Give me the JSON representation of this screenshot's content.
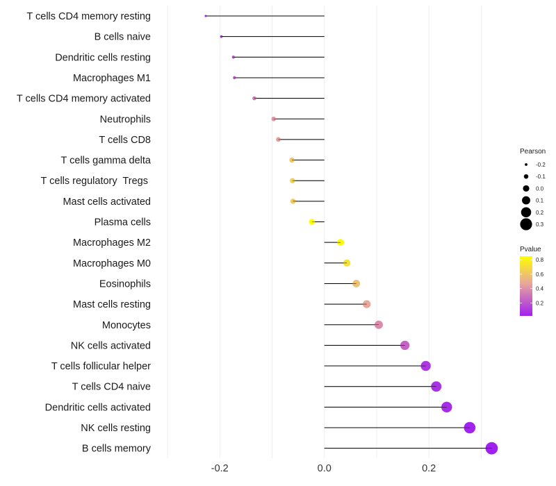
{
  "chart_data": {
    "type": "lollipop",
    "categories": [
      "T cells CD4 memory resting",
      "B cells naive",
      "Dendritic cells resting",
      "Macrophages M1",
      "T cells CD4 memory activated",
      "Neutrophils",
      "T cells CD8",
      "T cells gamma delta",
      "T cells regulatory  Tregs ",
      "Mast cells activated",
      "Plasma cells",
      "Macrophages M2",
      "Macrophages M0",
      "Eosinophils",
      "Mast cells resting",
      "Monocytes",
      "NK cells activated",
      "T cells follicular helper",
      "T cells CD4 naive",
      "Dendritic cells activated",
      "NK cells resting",
      "B cells memory"
    ],
    "values": [
      -0.227,
      -0.197,
      -0.174,
      -0.172,
      -0.134,
      -0.097,
      -0.088,
      -0.062,
      -0.061,
      -0.06,
      -0.024,
      0.031,
      0.043,
      0.061,
      0.081,
      0.104,
      0.154,
      0.194,
      0.214,
      0.234,
      0.278,
      0.32
    ],
    "pvalues": [
      0.05,
      0.08,
      0.18,
      0.22,
      0.32,
      0.42,
      0.45,
      0.62,
      0.65,
      0.62,
      0.85,
      0.82,
      0.72,
      0.58,
      0.48,
      0.38,
      0.25,
      0.1,
      0.08,
      0.06,
      0.03,
      0.01
    ],
    "xlim": [
      -0.32,
      0.35
    ],
    "xticks": [
      -0.2,
      0.0,
      0.2
    ],
    "xtick_labels": [
      "-0.2",
      "0.0",
      "0.2"
    ],
    "size_legend": {
      "title": "Pearson",
      "values": [
        -0.2,
        -0.1,
        0.0,
        0.1,
        0.2,
        0.3
      ],
      "labels": [
        "-0.2",
        "-0.1",
        "0.0",
        "0.1",
        "0.2",
        "0.3"
      ]
    },
    "color_legend": {
      "title": "Pvalue",
      "range": [
        0.02,
        0.85
      ],
      "ticks": [
        0.2,
        0.4,
        0.6,
        0.8
      ],
      "tick_labels": [
        "0.2",
        "0.4",
        "0.6",
        "0.8"
      ],
      "low_color": "#a020f0",
      "mid_color": "#e8a89a",
      "high_color": "#ffff00"
    },
    "segment_color": "#000000",
    "grid_color": "#ebebeb"
  }
}
